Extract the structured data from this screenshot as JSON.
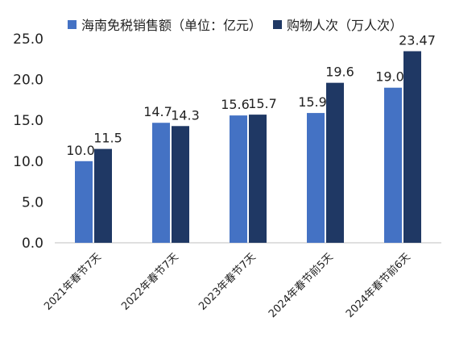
{
  "chart_data": {
    "type": "bar",
    "categories": [
      "2021年春节7天",
      "2022年春节7天",
      "2023年春节7天",
      "2024年春节前5天",
      "2024年春节前6天"
    ],
    "series": [
      {
        "name": "海南免税销售额（单位：亿元）",
        "values": [
          10.0,
          14.7,
          15.6,
          15.9,
          19.0
        ],
        "labels": [
          "10.0",
          "14.7",
          "15.6",
          "15.9",
          "19.0"
        ],
        "color": "#4472C4"
      },
      {
        "name": "购物人次（万人次）",
        "values": [
          11.5,
          14.3,
          15.7,
          19.6,
          23.47
        ],
        "labels": [
          "11.5",
          "14.3",
          "15.7",
          "19.6",
          "23.47"
        ],
        "color": "#1F3864"
      }
    ],
    "ylim": [
      0,
      25
    ],
    "yticks": [
      "0.0",
      "5.0",
      "10.0",
      "15.0",
      "20.0",
      "25.0"
    ],
    "grid": false,
    "legend": "top",
    "title": "",
    "xlabel": "",
    "ylabel": ""
  }
}
